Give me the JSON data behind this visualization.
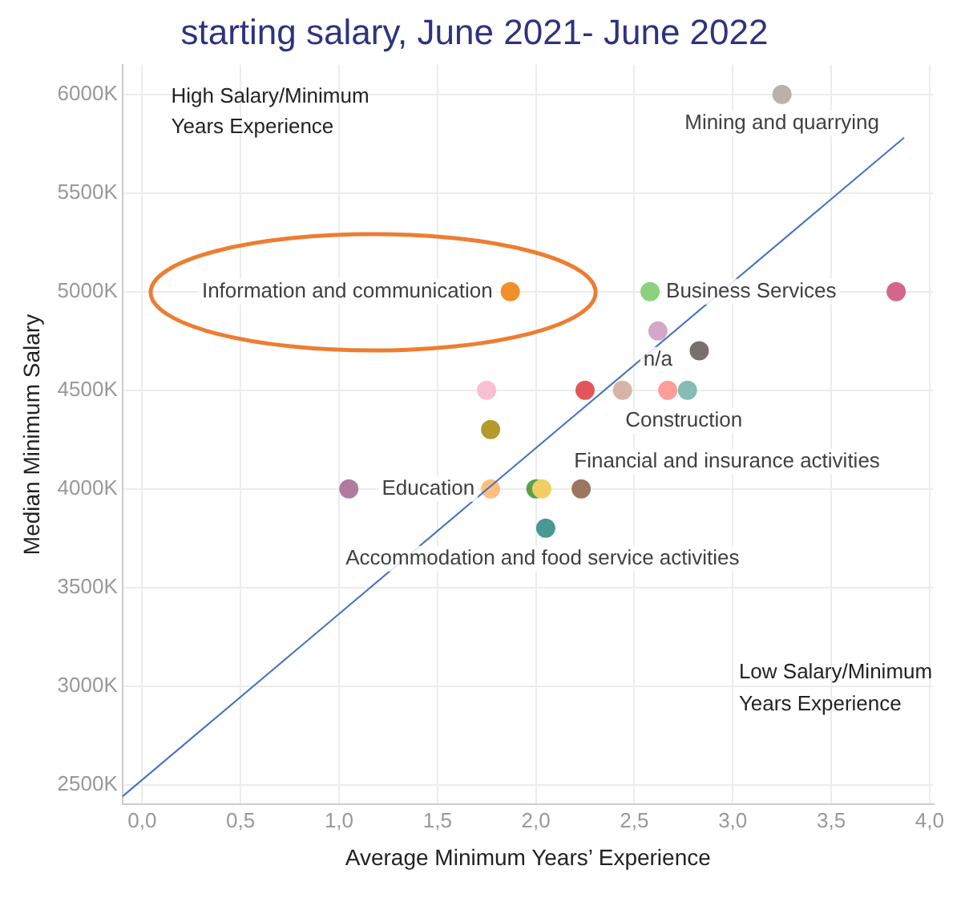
{
  "chart_data": {
    "type": "scatter",
    "title": "starting salary, June 2021- June 2022",
    "xlabel": "Average Minimum Years’ Experience",
    "ylabel": "Median Minimum Salary",
    "x": [
      3.25,
      1.87,
      2.58,
      3.83,
      2.62,
      2.83,
      1.75,
      2.25,
      2.44,
      2.67,
      2.77,
      1.77,
      1.05,
      1.77,
      2.0,
      2.03,
      2.23,
      2.05
    ],
    "values": [
      6000,
      5000,
      5000,
      5000,
      4800,
      4700,
      4500,
      4500,
      4500,
      4500,
      4500,
      4300,
      4000,
      4000,
      4000,
      4000,
      4000,
      3800
    ],
    "colors": [
      "#bab0ac",
      "#f28e2b",
      "#8cd17d",
      "#d4668d",
      "#d4a6c8",
      "#79706e",
      "#fabfd2",
      "#e15759",
      "#d7b5a6",
      "#ff9d9a",
      "#86bcb6",
      "#b6992d",
      "#b07aa1",
      "#ffbe7d",
      "#59a14f",
      "#f1ce63",
      "#9d7660",
      "#499894"
    ],
    "series": [
      {
        "type": "line",
        "x": [
          -0.1,
          3.87
        ],
        "values": [
          2440,
          5780
        ],
        "color": "#4472c4",
        "marker": "none"
      }
    ],
    "marker": "circle",
    "grid": true,
    "xlim": [
      -0.1,
      4.02
    ],
    "xticks": [
      {
        "value": 0,
        "label": "0,0"
      },
      {
        "value": 0.5,
        "label": "0,5"
      },
      {
        "value": 1,
        "label": "1,0"
      },
      {
        "value": 1.5,
        "label": "1,5"
      },
      {
        "value": 2,
        "label": "2,0"
      },
      {
        "value": 2.5,
        "label": "2,5"
      },
      {
        "value": 3,
        "label": "3,0"
      },
      {
        "value": 3.5,
        "label": "3,5"
      },
      {
        "value": 4,
        "label": "4,0"
      }
    ],
    "ylim": [
      2400,
      6150
    ],
    "yticks": [
      {
        "value": 2500,
        "label": "2500K"
      },
      {
        "value": 3000,
        "label": "3000K"
      },
      {
        "value": 3500,
        "label": "3500K"
      },
      {
        "value": 4000,
        "label": "4000K"
      },
      {
        "value": 4500,
        "label": "4500K"
      },
      {
        "value": 5000,
        "label": "5000K"
      },
      {
        "value": 5500,
        "label": "5500K"
      },
      {
        "value": 6000,
        "label": "6000K"
      }
    ],
    "annotations": [
      "High Salary/Minimum Years Experience",
      "Low Salary/Minimum Years Experience",
      {
        "text": "Mining and quarrying",
        "x": 3.25,
        "y": 6000
      },
      {
        "text": "Information and communication",
        "x": 1.87,
        "y": 5000
      },
      {
        "text": "Business Services",
        "x": 2.58,
        "y": 5000
      },
      {
        "text": "n/a",
        "x": 2.62,
        "y": 4800
      },
      {
        "text": "Construction",
        "x": 2.67,
        "y": 4500
      },
      {
        "text": "Financial and insurance activities",
        "x": 2.23,
        "y": 4000
      },
      {
        "text": "Education",
        "x": 1.77,
        "y": 4000
      },
      {
        "text": "Accommodation and food service activities",
        "x": 2.05,
        "y": 3800
      }
    ]
  }
}
